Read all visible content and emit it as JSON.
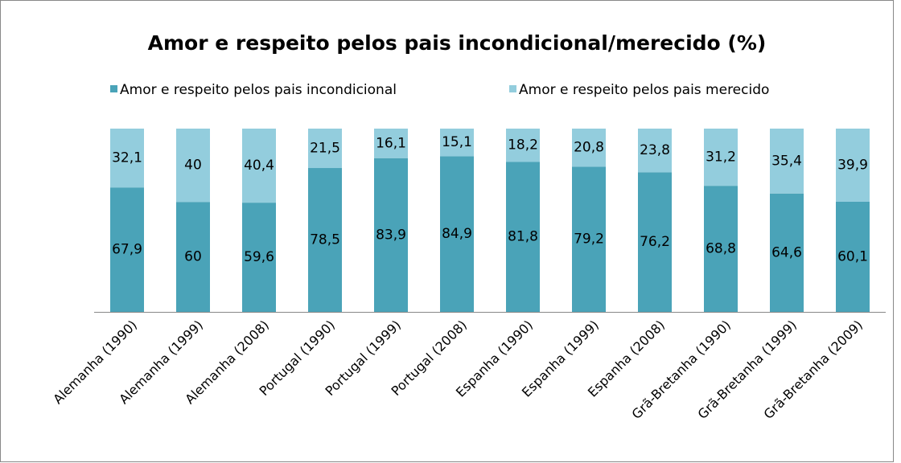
{
  "chart_data": {
    "type": "stacked-bar",
    "title": "Amor e respeito pelos pais incondicional/merecido (%)",
    "categories": [
      "Alemanha (1990)",
      "Alemanha (1999)",
      "Alemanha (2008)",
      "Portugal (1990)",
      "Portugal (1999)",
      "Portugal (2008)",
      "Espanha (1990)",
      "Espanha (1999)",
      "Espanha (2008)",
      "Grã-Bretanha (1990)",
      "Grã-Bretanha (1999)",
      "Grã-Bretanha (2009)"
    ],
    "series": [
      {
        "name": "Amor e respeito pelos pais incondicional",
        "color": "#4aa3b8",
        "values": [
          67.9,
          60,
          59.6,
          78.5,
          83.9,
          84.9,
          81.8,
          79.2,
          76.2,
          68.8,
          64.6,
          60.1
        ],
        "value_labels": [
          "67,9",
          "60",
          "59,6",
          "78,5",
          "83,9",
          "84,9",
          "81,8",
          "79,2",
          "76,2",
          "68,8",
          "64,6",
          "60,1"
        ]
      },
      {
        "name": "Amor e respeito pelos pais merecido",
        "color": "#93cddd",
        "values": [
          32.1,
          40,
          40.4,
          21.5,
          16.1,
          15.1,
          18.2,
          20.8,
          23.8,
          31.2,
          35.4,
          39.9
        ],
        "value_labels": [
          "32,1",
          "40",
          "40,4",
          "21,5",
          "16,1",
          "15,1",
          "18,2",
          "20,8",
          "23,8",
          "31,2",
          "35,4",
          "39,9"
        ]
      }
    ],
    "ylim": [
      0,
      100
    ],
    "legend": "top"
  }
}
